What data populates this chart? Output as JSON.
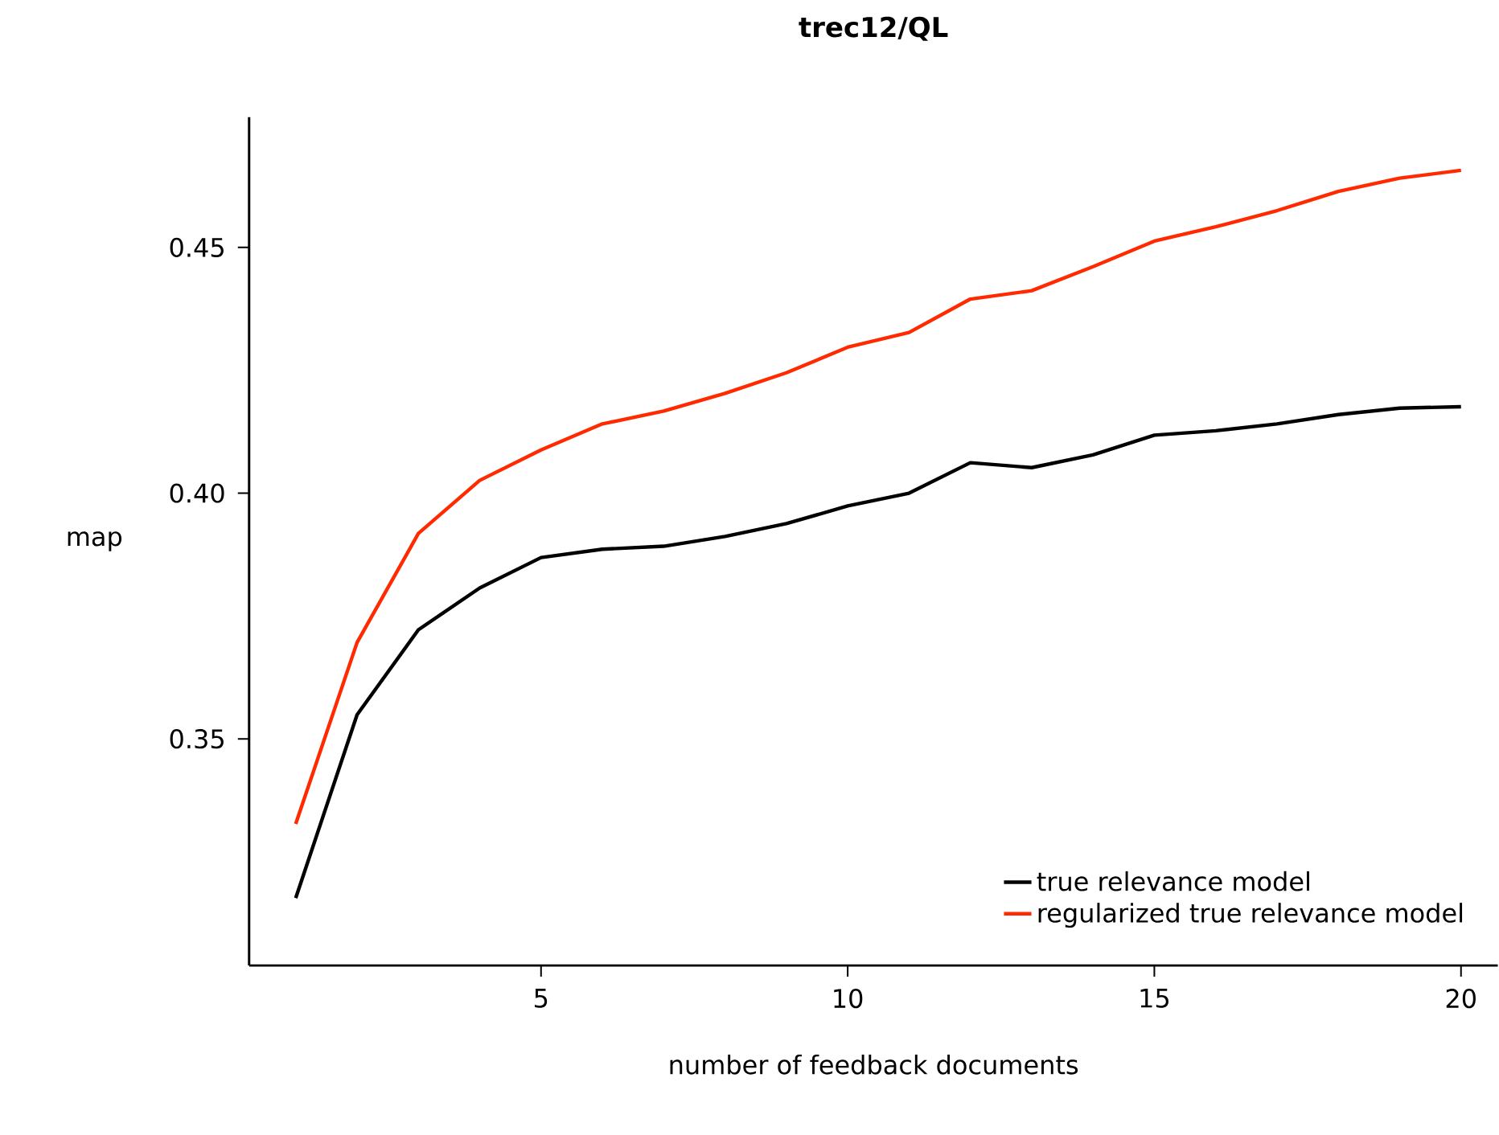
{
  "chart_data": {
    "type": "line",
    "title": "trec12/QL",
    "xlabel": "number of feedback documents",
    "ylabel": "map",
    "x": [
      1,
      2,
      3,
      4,
      5,
      6,
      7,
      8,
      9,
      10,
      11,
      12,
      13,
      14,
      15,
      16,
      17,
      18,
      19,
      20
    ],
    "series": [
      {
        "name": "true relevance model",
        "color": "#000000",
        "values": [
          0.3176,
          0.3549,
          0.3722,
          0.3807,
          0.3869,
          0.3886,
          0.3892,
          0.3912,
          0.3938,
          0.3974,
          0.4,
          0.4062,
          0.4052,
          0.4078,
          0.4118,
          0.4127,
          0.4141,
          0.416,
          0.4173,
          0.4176
        ]
      },
      {
        "name": "regularized true relevance model",
        "color": "#ff2a00",
        "values": [
          0.3327,
          0.3696,
          0.3918,
          0.4026,
          0.4088,
          0.4141,
          0.4167,
          0.4203,
          0.4245,
          0.4297,
          0.4327,
          0.4395,
          0.4412,
          0.4461,
          0.4513,
          0.4542,
          0.4575,
          0.4614,
          0.4641,
          0.4657
        ]
      }
    ],
    "xlim": [
      0.24,
      20.6
    ],
    "ylim": [
      0.3039,
      0.4765
    ],
    "xticks": [
      5,
      10,
      15,
      20
    ],
    "yticks": [
      {
        "value": 0.35,
        "label": "0.35"
      },
      {
        "value": 0.4,
        "label": "0.40"
      },
      {
        "value": 0.45,
        "label": "0.45"
      }
    ],
    "legend": "bottom right",
    "grid": false,
    "marker": "none",
    "line_style": "solid"
  }
}
